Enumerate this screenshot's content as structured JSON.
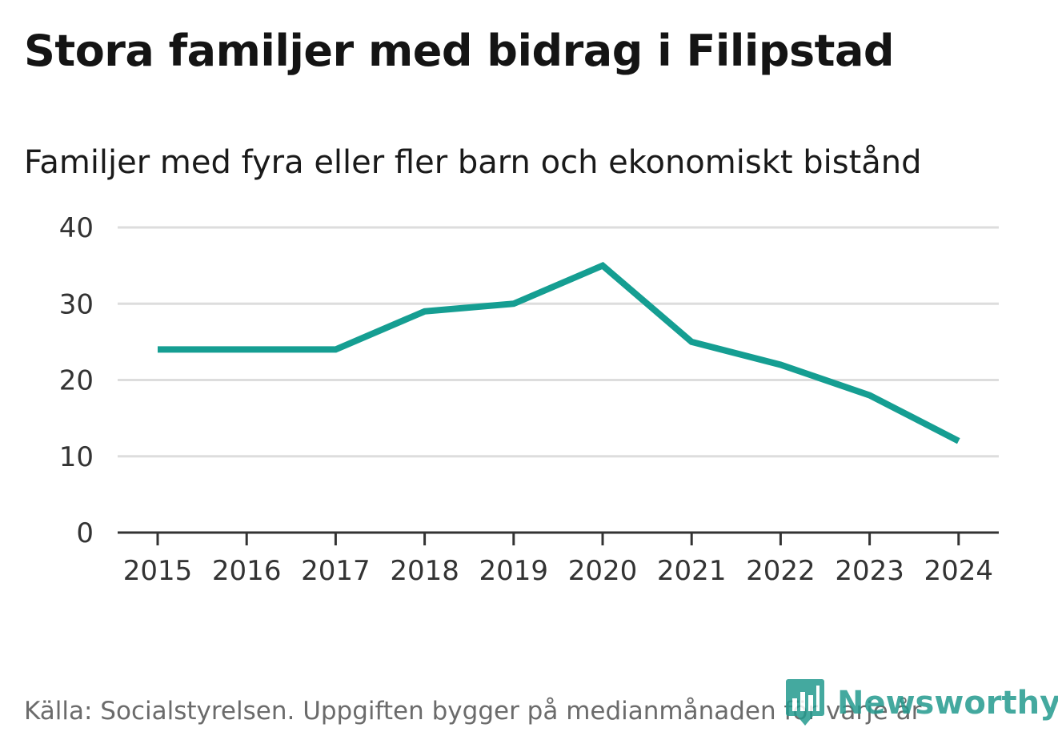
{
  "header": {
    "title": "Stora familjer med bidrag i Filipstad",
    "subtitle": "Familjer med fyra eller fler barn och ekonomiskt bistånd"
  },
  "chart_data": {
    "type": "line",
    "title": "Stora familjer med bidrag i Filipstad",
    "subtitle": "Familjer med fyra eller fler barn och ekonomiskt bistånd",
    "xlabel": "",
    "ylabel": "",
    "categories": [
      "2015",
      "2016",
      "2017",
      "2018",
      "2019",
      "2020",
      "2021",
      "2022",
      "2023",
      "2024"
    ],
    "series": [
      {
        "name": "Familjer med fyra eller fler barn och ekonomiskt bistånd",
        "values": [
          24,
          24,
          24,
          29,
          30,
          35,
          25,
          22,
          18,
          12
        ]
      }
    ],
    "ylim": [
      0,
      40
    ],
    "yticks": [
      0,
      10,
      20,
      30,
      40
    ],
    "grid": true,
    "legend": "none",
    "line_color": "#159e92"
  },
  "footer": {
    "source": "Källa: Socialstyrelsen. Uppgiften bygger på medianmånaden för varje år",
    "logo_text": "Newsworthy",
    "logo_icon": "newsworthy-logo-icon"
  },
  "colors": {
    "line": "#159e92",
    "grid": "#dddddd",
    "axis": "#333333",
    "brand": "#249b8f"
  }
}
